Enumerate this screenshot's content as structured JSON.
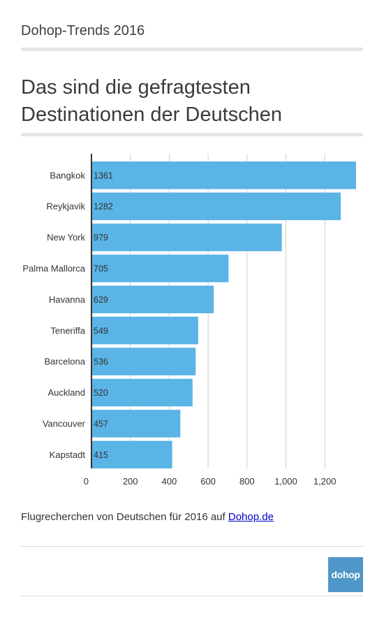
{
  "header": {
    "kicker": "Dohop-Trends 2016",
    "title_line1": "Das sind die gefragtesten",
    "title_line2": "Destinationen der Deutschen"
  },
  "footer": {
    "caption_text": "Flugrecherchen von Deutschen für 2016 auf ",
    "caption_link": "Dohop.de",
    "logo_text": "dohop"
  },
  "colors": {
    "bar": "#5ab4e5",
    "logo": "#4f97c8"
  },
  "chart_data": {
    "type": "bar",
    "orientation": "horizontal",
    "categories": [
      "Bangkok",
      "Reykjavik",
      "New York",
      "Palma Mallorca",
      "Havanna",
      "Teneriffa",
      "Barcelona",
      "Auckland",
      "Vancouver",
      "Kapstadt"
    ],
    "values": [
      1361,
      1282,
      979,
      705,
      629,
      549,
      536,
      520,
      457,
      415
    ],
    "xlim": [
      0,
      1361
    ],
    "xticks": [
      0,
      200,
      400,
      600,
      800,
      1000,
      1200
    ],
    "xtick_labels": [
      "0",
      "200",
      "400",
      "600",
      "800",
      "1,000",
      "1,200"
    ],
    "grid": true,
    "data_labels": true
  }
}
